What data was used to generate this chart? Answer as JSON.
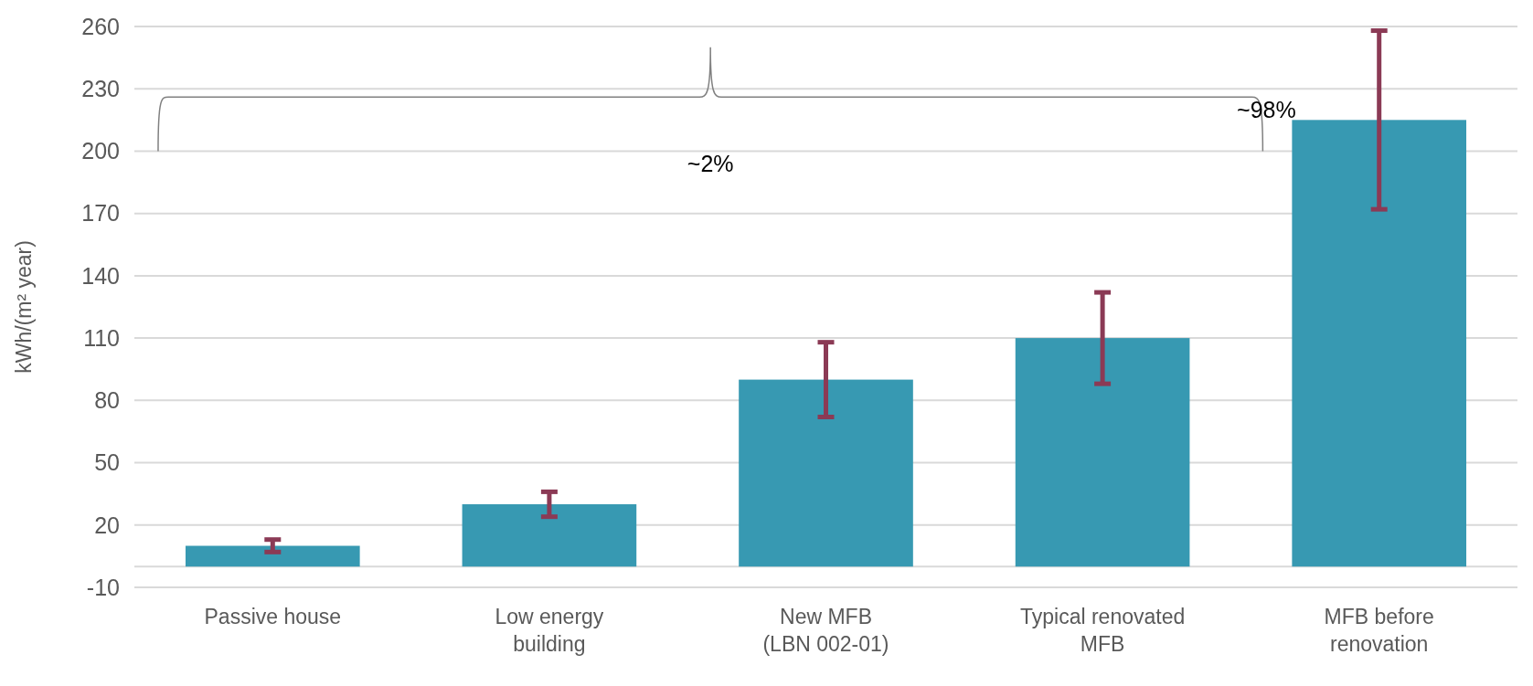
{
  "chart_data": {
    "type": "bar",
    "ylabel": "kWh/(m² year)",
    "categories": [
      "Passive house",
      "Low energy\nbuilding",
      "New MFB\n(LBN 002-01)",
      "Typical renovated\nMFB",
      "MFB before\nrenovation"
    ],
    "series": [
      {
        "color": "#3799b2",
        "values": [
          10,
          30,
          90,
          110,
          215
        ],
        "errors": [
          3,
          6,
          18,
          22,
          43
        ]
      }
    ],
    "ylim": [
      -10,
      260
    ],
    "yticks": [
      -10,
      20,
      50,
      80,
      110,
      140,
      170,
      200,
      230,
      260
    ],
    "grid": "y",
    "annotations": [
      "~2%",
      "~98%"
    ]
  }
}
